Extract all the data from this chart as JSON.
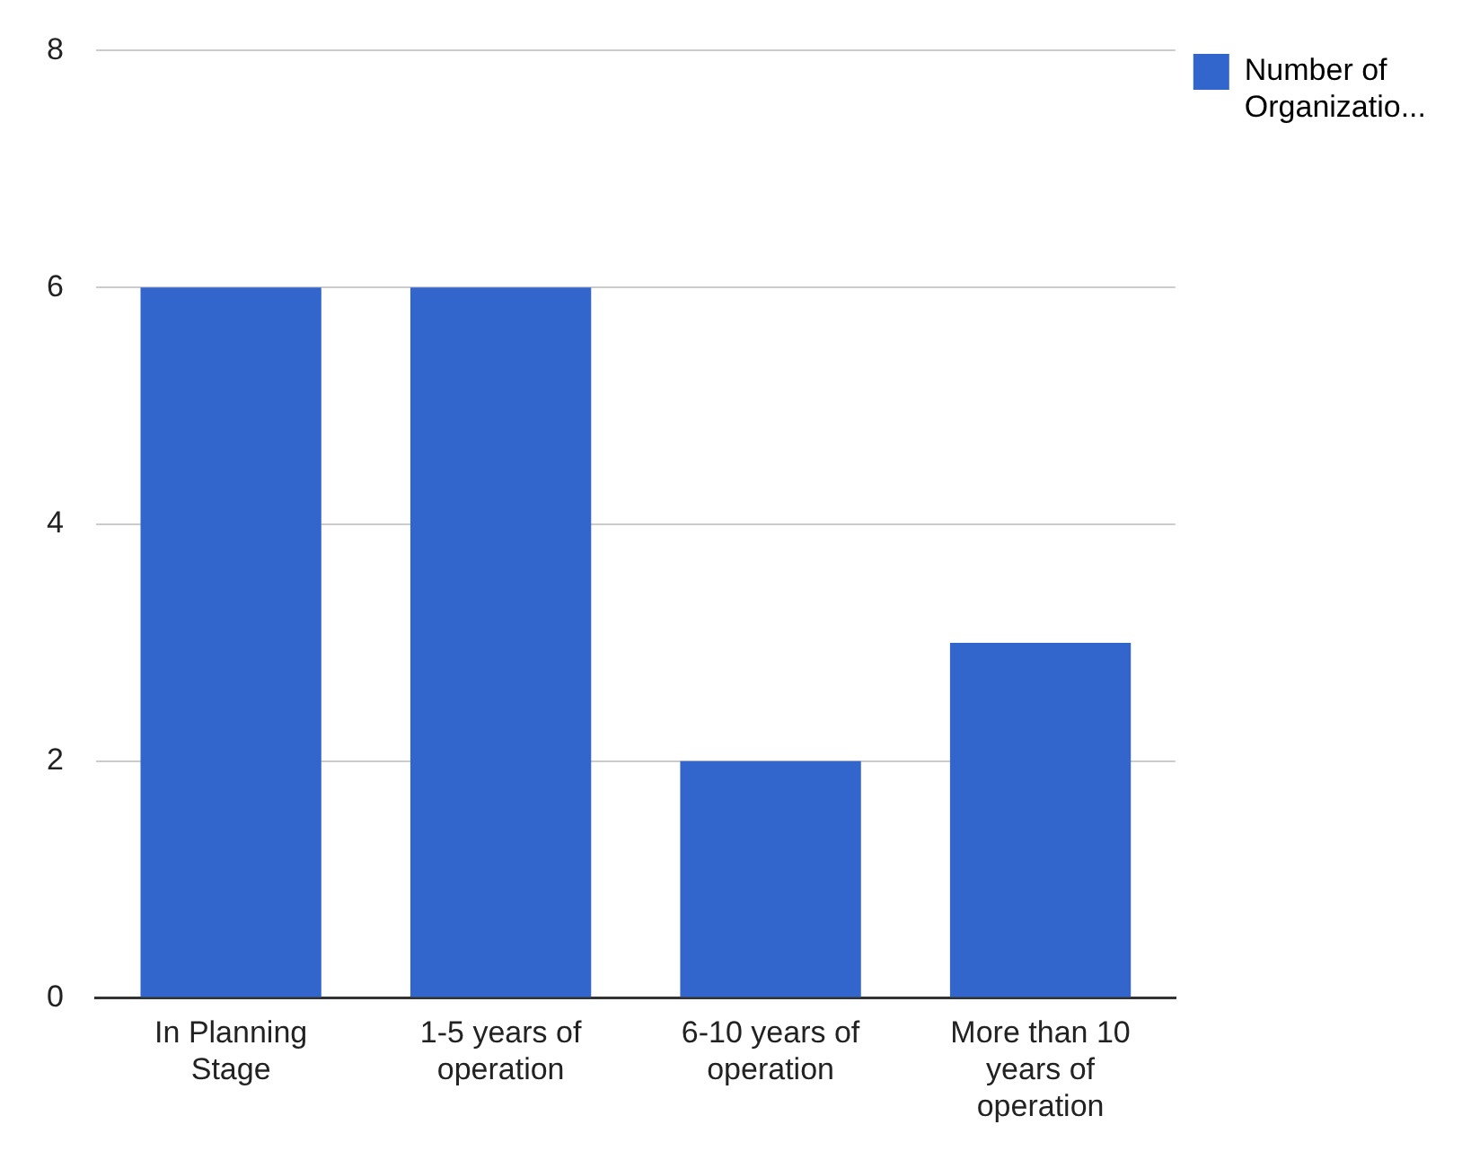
{
  "chart_data": {
    "type": "bar",
    "categories": [
      "In Planning Stage",
      "1-5 years of operation",
      "6-10 years of operation",
      "More than 10 years of operation"
    ],
    "series": [
      {
        "name": "Number of Organizatio...",
        "color": "#3366cc",
        "values": [
          6,
          6,
          2,
          3
        ]
      }
    ],
    "ylim": [
      0,
      8
    ],
    "yticks": [
      0,
      2,
      4,
      6,
      8
    ],
    "grid": "y",
    "legend": "top right"
  }
}
